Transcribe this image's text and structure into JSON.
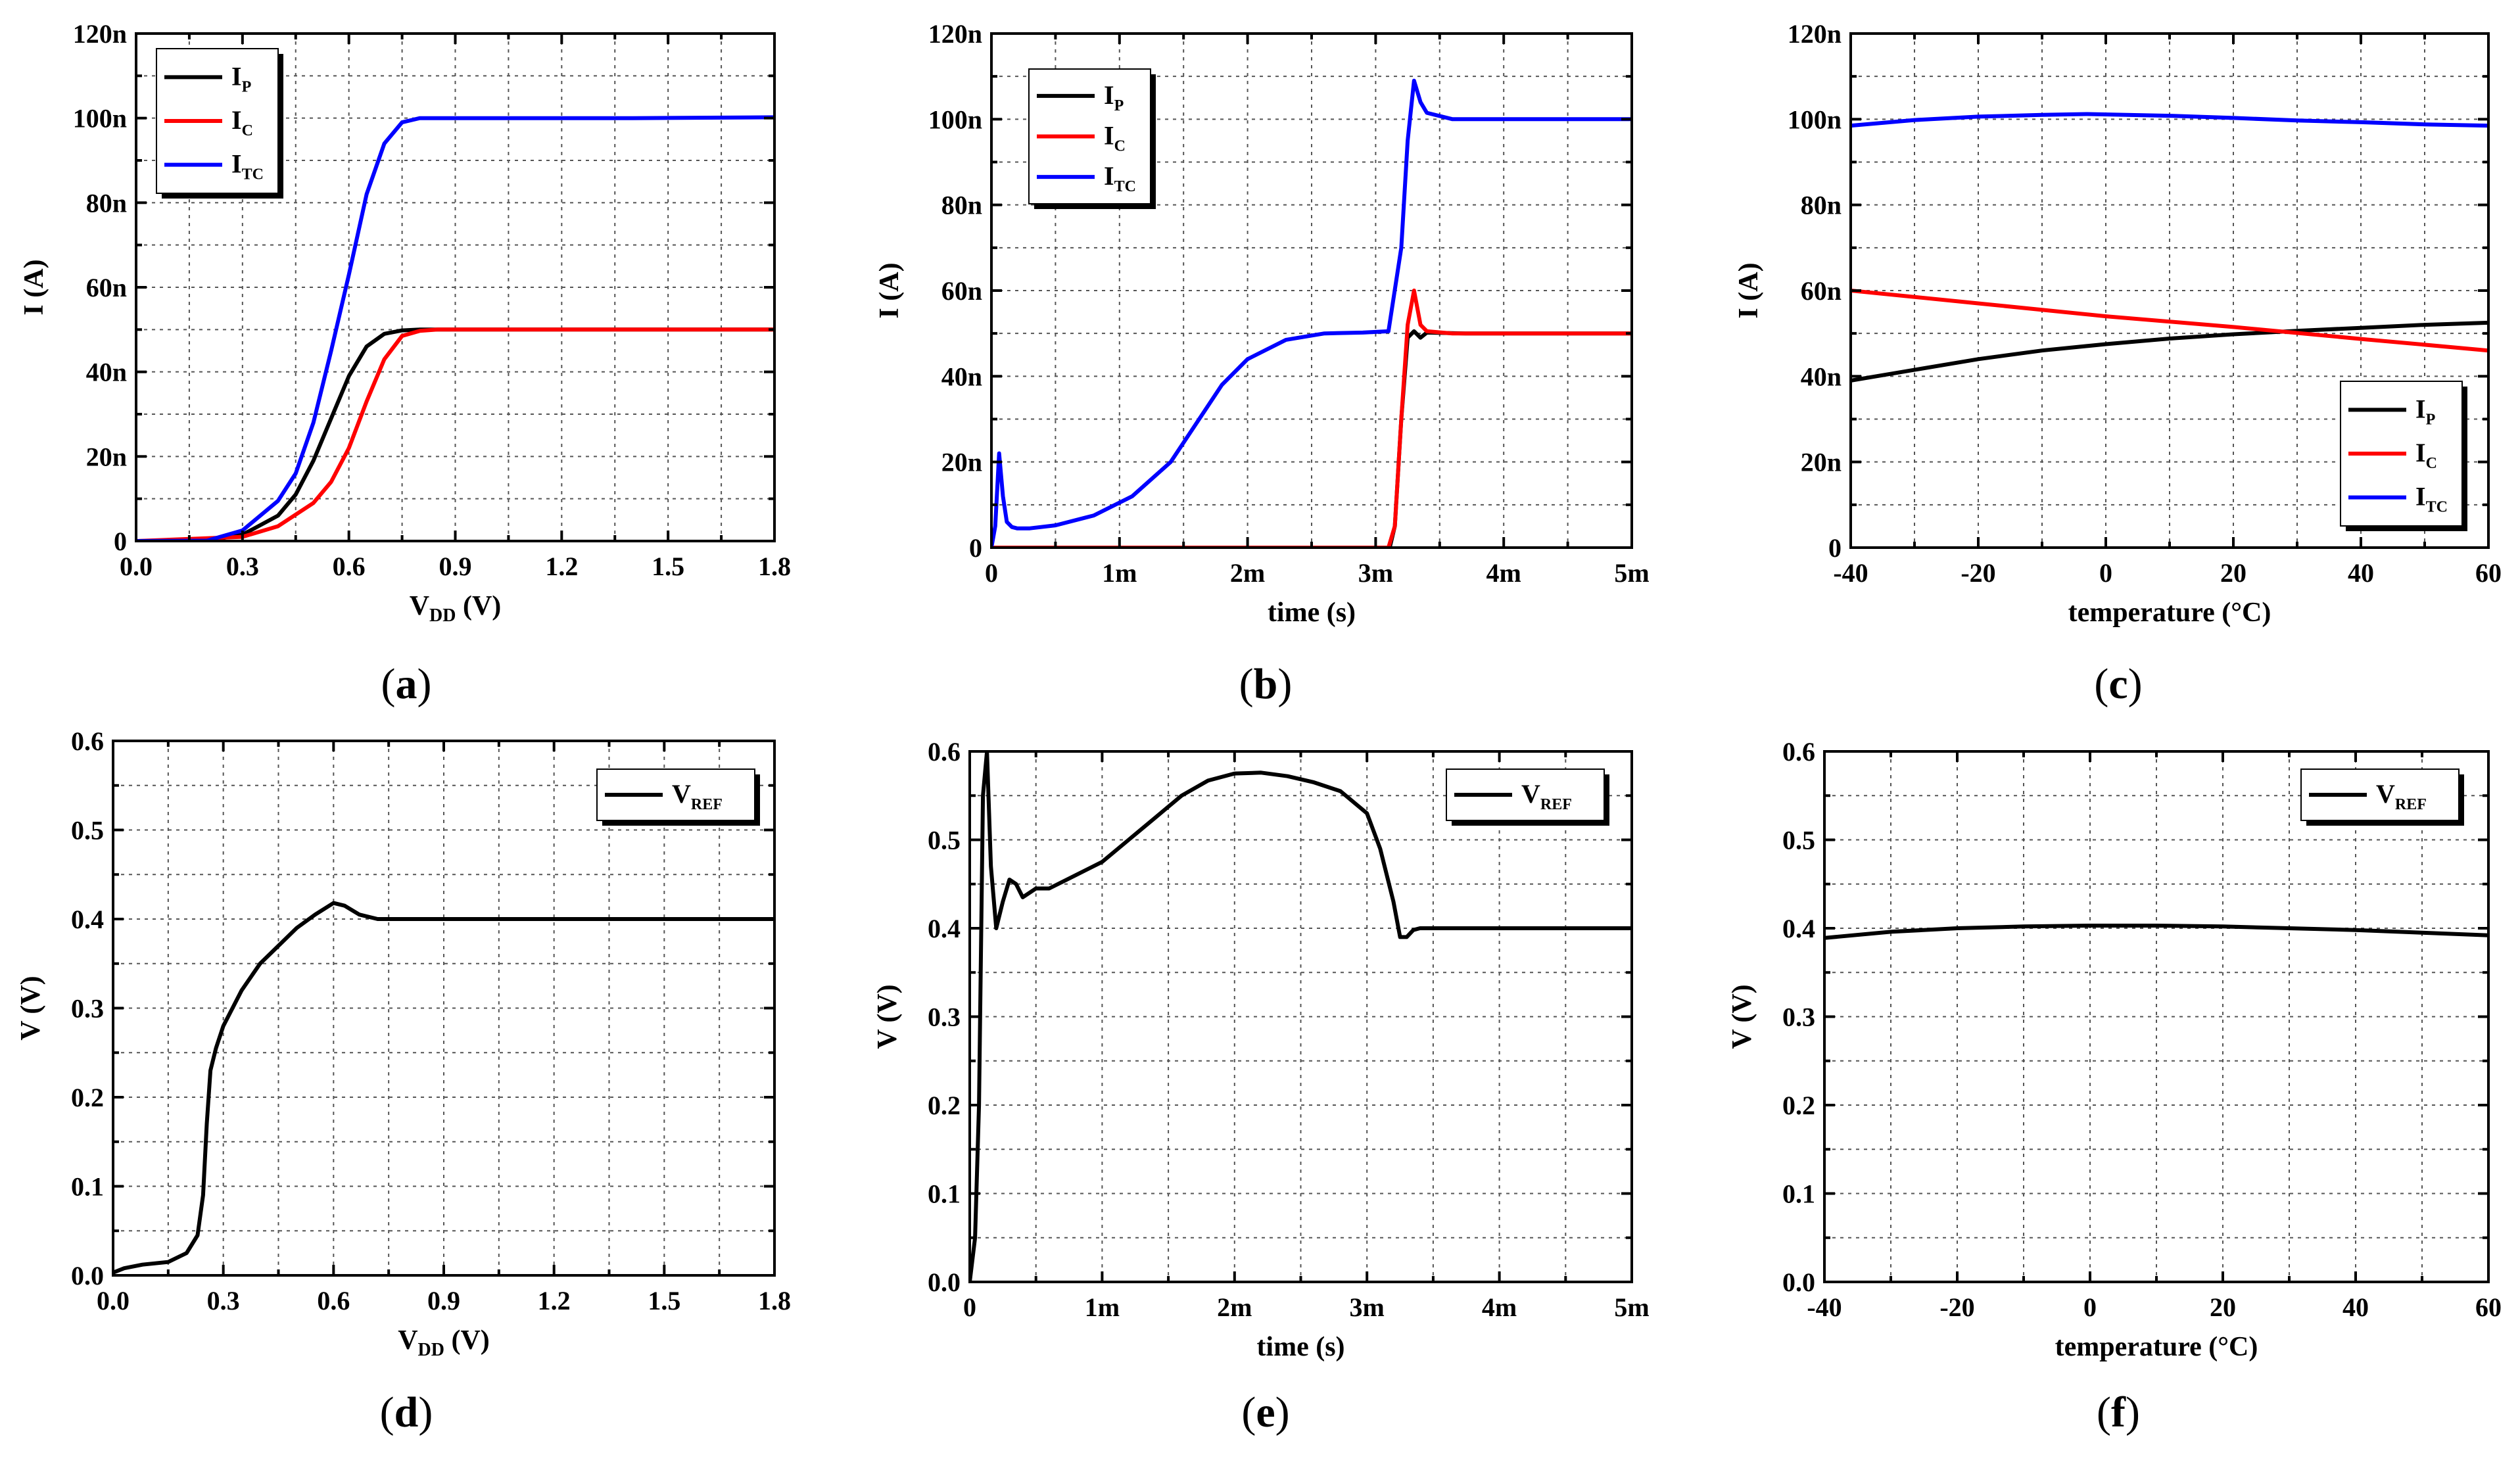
{
  "chart_data": [
    {
      "id": "a",
      "caption": "a",
      "type": "line",
      "xlabel": "V",
      "xlabel_sub": "DD",
      "xlabel_unit": " (V)",
      "ylabel": "I (A)",
      "xlim": [
        0,
        1.8
      ],
      "ylim": [
        0,
        1.2e-07
      ],
      "xticks": [
        0,
        0.3,
        0.6,
        0.9,
        1.2,
        1.5,
        1.8
      ],
      "xtick_labels": [
        "0.0",
        "0.3",
        "0.6",
        "0.9",
        "1.2",
        "1.5",
        "1.8"
      ],
      "yticks": [
        0,
        2e-08,
        4e-08,
        6e-08,
        8e-08,
        1e-07,
        1.2e-07
      ],
      "ytick_labels": [
        "0",
        "20n",
        "40n",
        "60n",
        "80n",
        "100n",
        "120n"
      ],
      "grid": true,
      "legend_position": "top-left",
      "series": [
        {
          "name": "I",
          "sub": "P",
          "color": "#000000",
          "x": [
            0,
            0.2,
            0.3,
            0.4,
            0.45,
            0.5,
            0.55,
            0.6,
            0.65,
            0.7,
            0.75,
            0.8,
            1.0,
            1.8
          ],
          "y": [
            0,
            1e-10,
            1.5e-09,
            6e-09,
            1.1e-08,
            1.9e-08,
            2.9e-08,
            3.9e-08,
            4.6e-08,
            4.9e-08,
            4.98e-08,
            5e-08,
            5e-08,
            5e-08
          ]
        },
        {
          "name": "I",
          "sub": "C",
          "color": "#ff0000",
          "x": [
            0,
            0.3,
            0.4,
            0.5,
            0.55,
            0.6,
            0.65,
            0.7,
            0.75,
            0.8,
            0.85,
            1.0,
            1.8
          ],
          "y": [
            0,
            1e-09,
            3.5e-09,
            9e-09,
            1.4e-08,
            2.2e-08,
            3.3e-08,
            4.3e-08,
            4.85e-08,
            4.97e-08,
            5e-08,
            5e-08,
            5e-08
          ]
        },
        {
          "name": "I",
          "sub": "TC",
          "color": "#0000ff",
          "x": [
            0,
            0.2,
            0.3,
            0.4,
            0.45,
            0.5,
            0.55,
            0.6,
            0.65,
            0.7,
            0.75,
            0.8,
            0.85,
            1.0,
            1.4,
            1.8
          ],
          "y": [
            0,
            1e-10,
            2.5e-09,
            9.5e-09,
            1.6e-08,
            2.8e-08,
            4.5e-08,
            6.3e-08,
            8.2e-08,
            9.4e-08,
            9.9e-08,
            1e-07,
            1e-07,
            1e-07,
            1e-07,
            1.002e-07
          ]
        }
      ]
    },
    {
      "id": "b",
      "caption": "b",
      "type": "line",
      "xlabel": "time (s)",
      "xlabel_sub": "",
      "xlabel_unit": "",
      "ylabel": "I (A)",
      "xlim": [
        0,
        0.005
      ],
      "ylim": [
        0,
        1.2e-07
      ],
      "xticks": [
        0,
        0.001,
        0.002,
        0.003,
        0.004,
        0.005
      ],
      "xtick_labels": [
        "0",
        "1m",
        "2m",
        "3m",
        "4m",
        "5m"
      ],
      "yticks": [
        0,
        2e-08,
        4e-08,
        6e-08,
        8e-08,
        1e-07,
        1.2e-07
      ],
      "ytick_labels": [
        "0",
        "20n",
        "40n",
        "60n",
        "80n",
        "100n",
        "120n"
      ],
      "grid": true,
      "legend_position": "top-left",
      "series": [
        {
          "name": "I",
          "sub": "P",
          "color": "#000000",
          "x": [
            0,
            0.00311,
            0.00315,
            0.0032,
            0.00325,
            0.0033,
            0.00335,
            0.0034,
            0.0037,
            0.005
          ],
          "y": [
            0,
            0,
            5e-09,
            3e-08,
            4.9e-08,
            5.05e-08,
            4.9e-08,
            5.02e-08,
            5e-08,
            5e-08
          ]
        },
        {
          "name": "I",
          "sub": "C",
          "color": "#ff0000",
          "x": [
            0,
            0.0031,
            0.00315,
            0.0032,
            0.00325,
            0.0033,
            0.00335,
            0.0034,
            0.0036,
            0.005
          ],
          "y": [
            0,
            0,
            5e-09,
            3e-08,
            5.2e-08,
            6e-08,
            5.2e-08,
            5.05e-08,
            5e-08,
            5e-08
          ]
        },
        {
          "name": "I",
          "sub": "TC",
          "color": "#0000ff",
          "x": [
            0,
            3e-05,
            6e-05,
            9e-05,
            0.00012,
            0.00016,
            0.0002,
            0.0003,
            0.0005,
            0.0008,
            0.0011,
            0.0014,
            0.0016,
            0.0018,
            0.002,
            0.0023,
            0.0026,
            0.0029,
            0.0031,
            0.0032,
            0.00325,
            0.0033,
            0.00335,
            0.0034,
            0.0036,
            0.0045,
            0.005
          ],
          "y": [
            0,
            5e-09,
            2.2e-08,
            1.2e-08,
            6e-09,
            4.8e-09,
            4.5e-09,
            4.5e-09,
            5.2e-09,
            7.5e-09,
            1.2e-08,
            2e-08,
            2.9e-08,
            3.8e-08,
            4.4e-08,
            4.85e-08,
            5e-08,
            5.02e-08,
            5.05e-08,
            7e-08,
            9.5e-08,
            1.09e-07,
            1.04e-07,
            1.015e-07,
            1e-07,
            1e-07,
            1e-07
          ]
        }
      ]
    },
    {
      "id": "c",
      "caption": "c",
      "type": "line",
      "xlabel": "temperature (°C)",
      "xlabel_sub": "",
      "xlabel_unit": "",
      "ylabel": "I (A)",
      "xlim": [
        -40,
        60
      ],
      "ylim": [
        0,
        1.2e-07
      ],
      "xticks": [
        -40,
        -20,
        0,
        20,
        40,
        60
      ],
      "xtick_labels": [
        "-40",
        "-20",
        "0",
        "20",
        "40",
        "60"
      ],
      "yticks": [
        0,
        2e-08,
        4e-08,
        6e-08,
        8e-08,
        1e-07,
        1.2e-07
      ],
      "ytick_labels": [
        "0",
        "20n",
        "40n",
        "60n",
        "80n",
        "100n",
        "120n"
      ],
      "grid": true,
      "legend_position": "bottom-right",
      "series": [
        {
          "name": "I",
          "sub": "P",
          "color": "#000000",
          "x": [
            -40,
            -30,
            -20,
            -10,
            0,
            10,
            20,
            30,
            40,
            50,
            60
          ],
          "y": [
            3.9e-08,
            4.15e-08,
            4.4e-08,
            4.6e-08,
            4.75e-08,
            4.88e-08,
            4.98e-08,
            5.06e-08,
            5.13e-08,
            5.2e-08,
            5.25e-08
          ]
        },
        {
          "name": "I",
          "sub": "C",
          "color": "#ff0000",
          "x": [
            -40,
            -20,
            0,
            20,
            40,
            60
          ],
          "y": [
            6e-08,
            5.7e-08,
            5.4e-08,
            5.15e-08,
            4.87e-08,
            4.6e-08
          ]
        },
        {
          "name": "I",
          "sub": "TC",
          "color": "#0000ff",
          "x": [
            -40,
            -30,
            -20,
            -10,
            -3,
            10,
            20,
            30,
            40,
            50,
            60
          ],
          "y": [
            9.85e-08,
            9.98e-08,
            1.006e-07,
            1.01e-07,
            1.012e-07,
            1.008e-07,
            1.003e-07,
            9.97e-08,
            9.93e-08,
            9.88e-08,
            9.85e-08
          ]
        }
      ]
    },
    {
      "id": "d",
      "caption": "d",
      "type": "line",
      "xlabel": "V",
      "xlabel_sub": "DD",
      "xlabel_unit": " (V)",
      "ylabel": "V (V)",
      "xlim": [
        0,
        1.8
      ],
      "ylim": [
        0,
        0.6
      ],
      "xticks": [
        0,
        0.3,
        0.6,
        0.9,
        1.2,
        1.5,
        1.8
      ],
      "xtick_labels": [
        "0.0",
        "0.3",
        "0.6",
        "0.9",
        "1.2",
        "1.5",
        "1.8"
      ],
      "yticks": [
        0,
        0.1,
        0.2,
        0.3,
        0.4,
        0.5,
        0.6
      ],
      "ytick_labels": [
        "0.0",
        "0.1",
        "0.2",
        "0.3",
        "0.4",
        "0.5",
        "0.6"
      ],
      "grid": true,
      "legend_position": "top-right",
      "series": [
        {
          "name": "V",
          "sub": "REF",
          "color": "#000000",
          "x": [
            0,
            0.03,
            0.08,
            0.15,
            0.2,
            0.23,
            0.245,
            0.255,
            0.265,
            0.28,
            0.3,
            0.35,
            0.4,
            0.45,
            0.5,
            0.55,
            0.6,
            0.63,
            0.67,
            0.72,
            0.8,
            1.0,
            1.8
          ],
          "y": [
            0.003,
            0.008,
            0.012,
            0.015,
            0.025,
            0.045,
            0.09,
            0.17,
            0.23,
            0.255,
            0.28,
            0.32,
            0.35,
            0.37,
            0.39,
            0.405,
            0.418,
            0.415,
            0.405,
            0.4,
            0.4,
            0.4,
            0.4
          ]
        }
      ]
    },
    {
      "id": "e",
      "caption": "e",
      "type": "line",
      "xlabel": "time (s)",
      "xlabel_sub": "",
      "xlabel_unit": "",
      "ylabel": "V (V)",
      "xlim": [
        0,
        0.005
      ],
      "ylim": [
        0,
        0.6
      ],
      "xticks": [
        0,
        0.001,
        0.002,
        0.003,
        0.004,
        0.005
      ],
      "xtick_labels": [
        "0",
        "1m",
        "2m",
        "3m",
        "4m",
        "5m"
      ],
      "yticks": [
        0,
        0.1,
        0.2,
        0.3,
        0.4,
        0.5,
        0.6
      ],
      "ytick_labels": [
        "0.0",
        "0.1",
        "0.2",
        "0.3",
        "0.4",
        "0.5",
        "0.6"
      ],
      "grid": true,
      "legend_position": "top-right",
      "series": [
        {
          "name": "V",
          "sub": "REF",
          "color": "#000000",
          "x": [
            0,
            4e-05,
            7e-05,
            0.0001,
            0.00013,
            0.00016,
            0.0002,
            0.00025,
            0.0003,
            0.00035,
            0.0004,
            0.00045,
            0.0005,
            0.0006,
            0.0008,
            0.001,
            0.0012,
            0.0014,
            0.0016,
            0.0018,
            0.002,
            0.0022,
            0.0024,
            0.0026,
            0.0028,
            0.003,
            0.0031,
            0.0032,
            0.00325,
            0.0033,
            0.00335,
            0.0034,
            0.0036,
            0.005
          ],
          "y": [
            0,
            0.05,
            0.2,
            0.55,
            0.6,
            0.47,
            0.4,
            0.43,
            0.455,
            0.45,
            0.435,
            0.44,
            0.445,
            0.445,
            0.46,
            0.475,
            0.5,
            0.525,
            0.55,
            0.567,
            0.575,
            0.576,
            0.572,
            0.565,
            0.555,
            0.53,
            0.49,
            0.43,
            0.39,
            0.39,
            0.398,
            0.4,
            0.4,
            0.4
          ]
        }
      ]
    },
    {
      "id": "f",
      "caption": "f",
      "type": "line",
      "xlabel": "temperature (°C)",
      "xlabel_sub": "",
      "xlabel_unit": "",
      "ylabel": "V (V)",
      "xlim": [
        -40,
        60
      ],
      "ylim": [
        0,
        0.6
      ],
      "xticks": [
        -40,
        -20,
        0,
        20,
        40,
        60
      ],
      "xtick_labels": [
        "-40",
        "-20",
        "0",
        "20",
        "40",
        "60"
      ],
      "yticks": [
        0,
        0.1,
        0.2,
        0.3,
        0.4,
        0.5,
        0.6
      ],
      "ytick_labels": [
        "0.0",
        "0.1",
        "0.2",
        "0.3",
        "0.4",
        "0.5",
        "0.6"
      ],
      "grid": true,
      "legend_position": "top-right",
      "series": [
        {
          "name": "V",
          "sub": "REF",
          "color": "#000000",
          "x": [
            -40,
            -30,
            -20,
            -10,
            0,
            10,
            20,
            30,
            40,
            50,
            60
          ],
          "y": [
            0.389,
            0.396,
            0.4,
            0.402,
            0.403,
            0.403,
            0.402,
            0.4,
            0.398,
            0.395,
            0.392
          ]
        }
      ]
    }
  ]
}
